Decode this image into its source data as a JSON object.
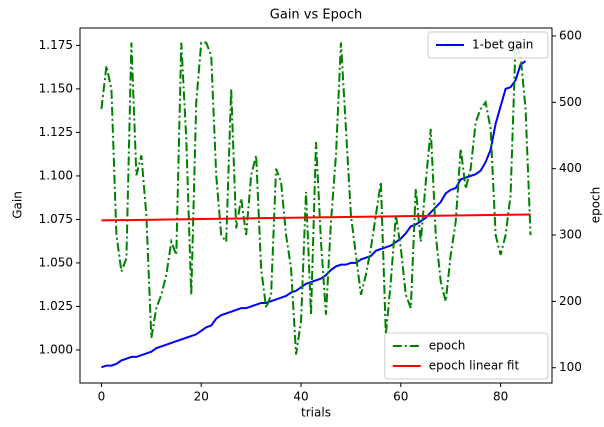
{
  "chart_data": {
    "type": "line",
    "title": "Gain vs Epoch",
    "xlabel": "trials",
    "ylabel": "Gain",
    "y2label": "epoch",
    "xlim": [
      -4.3,
      90.3
    ],
    "xticks": [
      0,
      20,
      40,
      60,
      80
    ],
    "ylim": [
      0.981,
      1.185
    ],
    "yticks": [
      {
        "value": 1.0,
        "label": "1.000"
      },
      {
        "value": 1.025,
        "label": "1.025"
      },
      {
        "value": 1.05,
        "label": "1.050"
      },
      {
        "value": 1.075,
        "label": "1.075"
      },
      {
        "value": 1.1,
        "label": "1.100"
      },
      {
        "value": 1.125,
        "label": "1.125"
      },
      {
        "value": 1.15,
        "label": "1.150"
      },
      {
        "value": 1.175,
        "label": "1.175"
      }
    ],
    "y2lim": [
      77,
      612
    ],
    "y2ticks": [
      100,
      200,
      300,
      400,
      500,
      600
    ],
    "legend_loc": {
      "y": "upper right",
      "y2": "lower right"
    },
    "series": [
      {
        "name": "1-bet gain",
        "color": "#0000ff",
        "style": "solid",
        "axis": "y",
        "x": [
          0,
          1,
          2,
          3,
          4,
          5,
          6,
          7,
          8,
          9,
          10,
          11,
          12,
          13,
          14,
          15,
          16,
          17,
          18,
          19,
          20,
          21,
          22,
          23,
          24,
          25,
          26,
          27,
          28,
          29,
          30,
          31,
          32,
          33,
          34,
          35,
          36,
          37,
          38,
          39,
          40,
          41,
          42,
          43,
          44,
          45,
          46,
          47,
          48,
          49,
          50,
          51,
          52,
          53,
          54,
          55,
          56,
          57,
          58,
          59,
          60,
          61,
          62,
          63,
          64,
          65,
          66,
          67,
          68,
          69,
          70,
          71,
          72,
          73,
          74,
          75,
          76,
          77,
          78,
          79,
          80,
          81,
          82,
          83,
          84,
          85
        ],
        "values": [
          0.99,
          0.991,
          0.991,
          0.992,
          0.994,
          0.995,
          0.996,
          0.996,
          0.997,
          0.998,
          0.999,
          1.001,
          1.002,
          1.003,
          1.004,
          1.005,
          1.006,
          1.007,
          1.008,
          1.009,
          1.011,
          1.013,
          1.014,
          1.018,
          1.02,
          1.021,
          1.022,
          1.023,
          1.024,
          1.024,
          1.025,
          1.026,
          1.027,
          1.027,
          1.028,
          1.029,
          1.03,
          1.031,
          1.033,
          1.034,
          1.036,
          1.038,
          1.039,
          1.04,
          1.041,
          1.043,
          1.046,
          1.048,
          1.049,
          1.049,
          1.05,
          1.05,
          1.052,
          1.053,
          1.054,
          1.057,
          1.058,
          1.059,
          1.06,
          1.062,
          1.064,
          1.067,
          1.071,
          1.072,
          1.074,
          1.076,
          1.079,
          1.082,
          1.085,
          1.09,
          1.092,
          1.093,
          1.098,
          1.099,
          1.1,
          1.101,
          1.103,
          1.108,
          1.115,
          1.13,
          1.14,
          1.15,
          1.151,
          1.155,
          1.164,
          1.166
        ]
      },
      {
        "name": "epoch",
        "color": "#008000",
        "style": "dashdot",
        "axis": "y2",
        "x": [
          0,
          1,
          2,
          3,
          4,
          5,
          6,
          7,
          8,
          9,
          10,
          11,
          12,
          13,
          14,
          15,
          16,
          17,
          18,
          19,
          20,
          21,
          22,
          23,
          24,
          25,
          26,
          27,
          28,
          29,
          30,
          31,
          32,
          33,
          34,
          35,
          36,
          37,
          38,
          39,
          40,
          41,
          42,
          43,
          44,
          45,
          46,
          47,
          48,
          49,
          50,
          51,
          52,
          53,
          54,
          55,
          56,
          57,
          58,
          59,
          60,
          61,
          62,
          63,
          64,
          65,
          66,
          67,
          68,
          69,
          70,
          71,
          72,
          73,
          74,
          75,
          76,
          77,
          78,
          79,
          80,
          81,
          82,
          83,
          84,
          85,
          86
        ],
        "values": [
          490,
          555,
          520,
          300,
          245,
          265,
          590,
          390,
          420,
          330,
          145,
          190,
          210,
          240,
          290,
          270,
          590,
          445,
          210,
          500,
          590,
          590,
          570,
          390,
          300,
          290,
          520,
          310,
          355,
          300,
          390,
          420,
          250,
          190,
          210,
          400,
          380,
          300,
          250,
          120,
          170,
          365,
          180,
          440,
          290,
          180,
          320,
          420,
          590,
          460,
          330,
          270,
          210,
          240,
          280,
          330,
          380,
          150,
          230,
          330,
          280,
          210,
          190,
          370,
          290,
          380,
          460,
          300,
          230,
          200,
          270,
          320,
          430,
          370,
          400,
          470,
          490,
          500,
          460,
          300,
          270,
          300,
          360,
          590,
          570,
          490,
          300
        ]
      },
      {
        "name": "epoch linear fit",
        "color": "#ff0000",
        "style": "solid",
        "axis": "y2",
        "x": [
          0,
          86
        ],
        "values": [
          322,
          331
        ]
      }
    ]
  }
}
